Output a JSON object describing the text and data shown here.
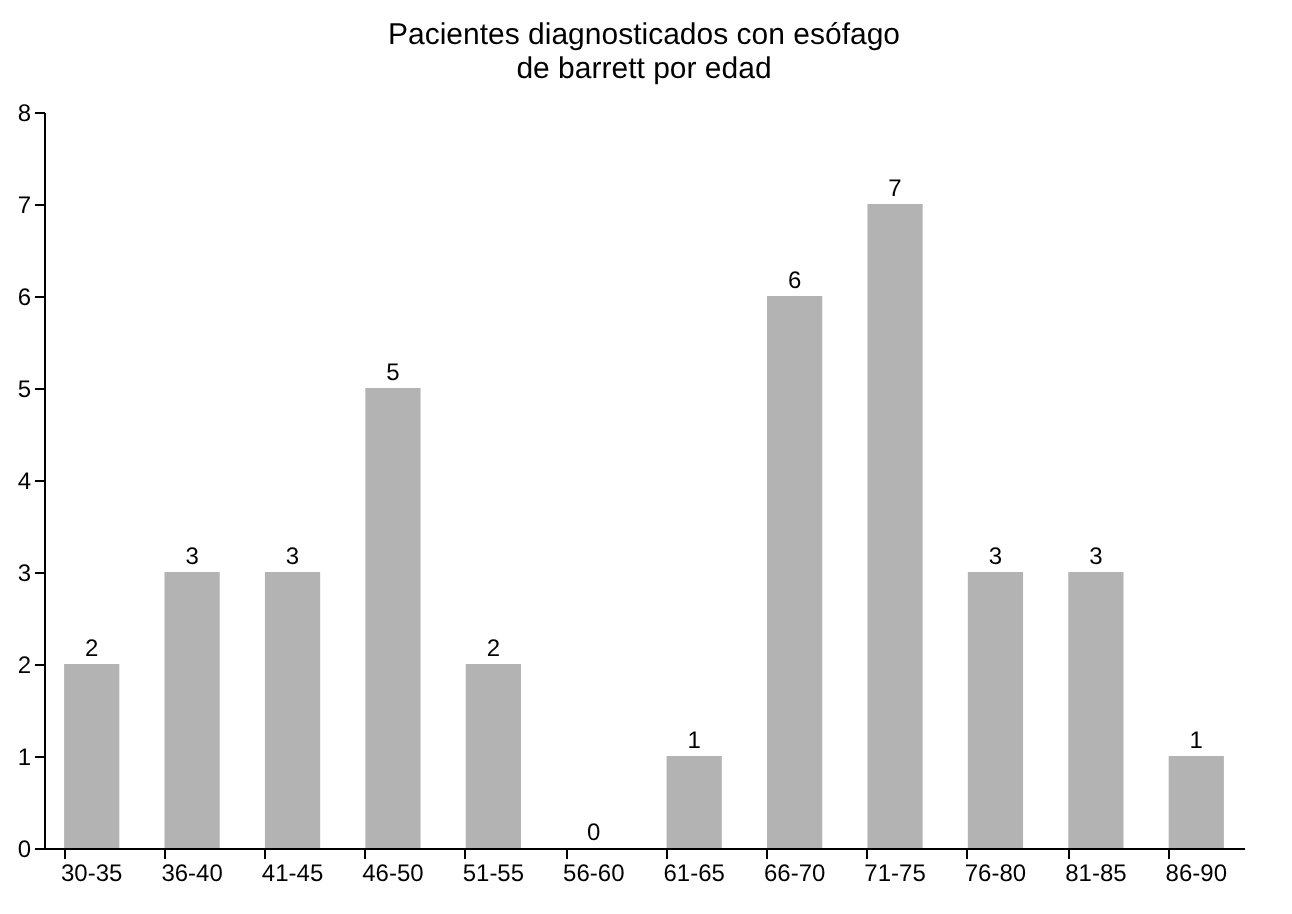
{
  "chart_data": {
    "type": "bar",
    "title": "Pacientes diagnosticados con esófago\nde barrett por edad",
    "categories": [
      "30-35",
      "36-40",
      "41-45",
      "46-50",
      "51-55",
      "56-60",
      "61-65",
      "66-70",
      "71-75",
      "76-80",
      "81-85",
      "86-90"
    ],
    "values": [
      2,
      3,
      3,
      5,
      2,
      0,
      1,
      6,
      7,
      3,
      3,
      1
    ],
    "color": "#b3b3b3",
    "ylim": [
      0,
      8
    ],
    "yticks": [
      0,
      1,
      2,
      3,
      4,
      5,
      6,
      7,
      8
    ],
    "grid": false,
    "data_labels": true
  }
}
